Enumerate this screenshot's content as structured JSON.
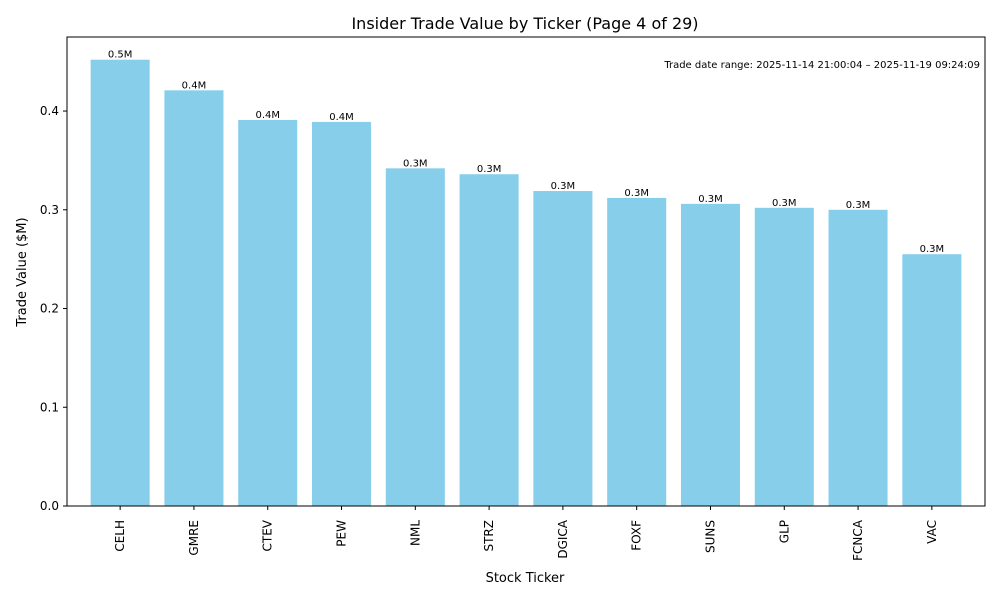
{
  "chart_data": {
    "type": "bar",
    "title": "Insider Trade Value by Ticker (Page 4 of 29)",
    "xlabel": "Stock Ticker",
    "ylabel": "Trade Value ($M)",
    "ylim": [
      0,
      0.475
    ],
    "yticks": [
      0.0,
      0.1,
      0.2,
      0.3,
      0.4
    ],
    "ytick_labels": [
      "0.0",
      "0.1",
      "0.2",
      "0.3",
      "0.4"
    ],
    "categories": [
      "CELH",
      "GMRE",
      "CTEV",
      "PEW",
      "NML",
      "STRZ",
      "DGICA",
      "FOXF",
      "SUNS",
      "GLP",
      "FCNCA",
      "VAC"
    ],
    "values": [
      0.452,
      0.421,
      0.391,
      0.389,
      0.342,
      0.336,
      0.319,
      0.312,
      0.306,
      0.302,
      0.3,
      0.255
    ],
    "bar_labels": [
      "0.5M",
      "0.4M",
      "0.4M",
      "0.4M",
      "0.3M",
      "0.3M",
      "0.3M",
      "0.3M",
      "0.3M",
      "0.3M",
      "0.3M",
      "0.3M"
    ],
    "annotation": "Trade date range: 2025-11-14 21:00:04 – 2025-11-19 09:24:09",
    "bar_color": "#87ceeb",
    "grid": false,
    "legend": "none"
  }
}
